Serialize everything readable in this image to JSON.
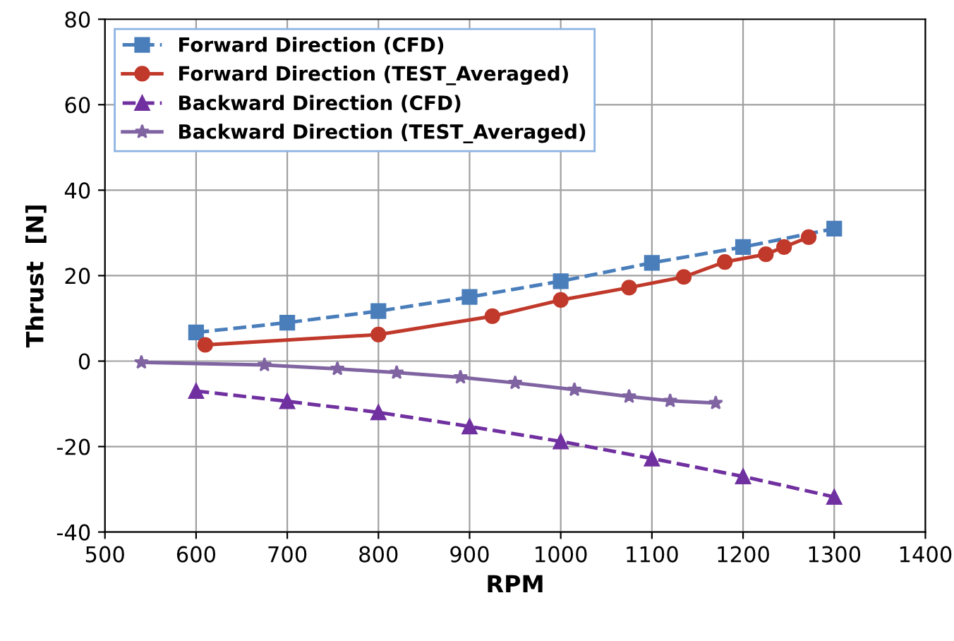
{
  "chart_data": {
    "type": "line",
    "xlabel": "RPM",
    "ylabel": "Thrust  [N]",
    "xlim": [
      500,
      1400
    ],
    "xticks": [
      500,
      600,
      700,
      800,
      900,
      1000,
      1100,
      1200,
      1300,
      1400
    ],
    "ylim": [
      -40,
      80
    ],
    "yticks": [
      -40,
      -20,
      0,
      20,
      40,
      60,
      80
    ],
    "grid": true,
    "legend": "top left",
    "series": [
      {
        "name": "Forward Direction (CFD)",
        "color": "#4a7ebb",
        "marker": "square",
        "line_style": "dashed",
        "x": [
          600,
          700,
          800,
          900,
          1000,
          1100,
          1200,
          1300
        ],
        "values": [
          6.7,
          9,
          11.7,
          15,
          18.7,
          23,
          26.7,
          31
        ]
      },
      {
        "name": "Forward Direction (TEST_Averaged)",
        "color": "#c0392b",
        "marker": "circle",
        "line_style": "solid",
        "x": [
          610,
          800,
          925,
          1000,
          1075,
          1135,
          1180,
          1225,
          1245,
          1272
        ],
        "values": [
          3.8,
          6.2,
          10.5,
          14.3,
          17.2,
          19.7,
          23.2,
          25,
          26.7,
          29
        ]
      },
      {
        "name": "Backward Direction (CFD)",
        "color": "#7030a0",
        "marker": "triangle",
        "line_style": "dashed",
        "x": [
          600,
          700,
          800,
          900,
          1000,
          1100,
          1200,
          1300
        ],
        "values": [
          -7,
          -9.4,
          -12,
          -15.3,
          -18.8,
          -22.8,
          -27,
          -31.8
        ]
      },
      {
        "name": "Backward Direction (TEST_Averaged)",
        "color": "#8064a2",
        "marker": "star",
        "line_style": "solid",
        "x": [
          540,
          675,
          755,
          820,
          890,
          950,
          1015,
          1075,
          1120,
          1170
        ],
        "values": [
          -0.3,
          -0.9,
          -1.8,
          -2.7,
          -3.8,
          -5.1,
          -6.7,
          -8.3,
          -9.3,
          -9.8
        ]
      }
    ]
  }
}
